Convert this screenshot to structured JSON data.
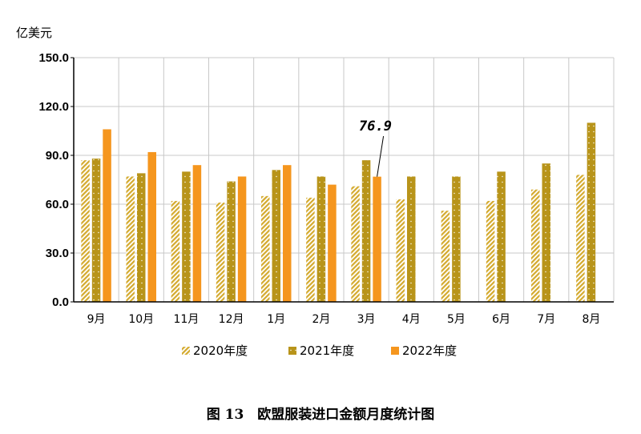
{
  "chart_data": {
    "type": "bar",
    "unit_label": "亿美元",
    "categories": [
      "9月",
      "10月",
      "11月",
      "12月",
      "1月",
      "2月",
      "3月",
      "4月",
      "5月",
      "6月",
      "7月",
      "8月"
    ],
    "series": [
      {
        "name": "2020年度",
        "color": "#d4aa2e",
        "pattern": "diagonal-hatch",
        "values": [
          87,
          77,
          62,
          61,
          65,
          64,
          71,
          63,
          56,
          62,
          69,
          78
        ]
      },
      {
        "name": "2021年度",
        "color": "#b8941a",
        "pattern": "solid-dotted",
        "values": [
          88,
          79,
          80,
          74,
          81,
          77,
          87,
          77,
          77,
          80,
          85,
          110
        ]
      },
      {
        "name": "2022年度",
        "color": "#f5961e",
        "pattern": "solid",
        "values": [
          106,
          92,
          84,
          77,
          84,
          72,
          76.9,
          null,
          null,
          null,
          null,
          null
        ]
      }
    ],
    "ylim": [
      0,
      150
    ],
    "yticks": [
      "0.0",
      "30.0",
      "60.0",
      "90.0",
      "120.0",
      "150.0"
    ],
    "grid": true,
    "legend_position": "bottom",
    "annotation": {
      "text": "76.9",
      "category": "3月",
      "series": "2022年度"
    }
  },
  "caption": "图 13　欧盟服装进口金额月度统计图"
}
